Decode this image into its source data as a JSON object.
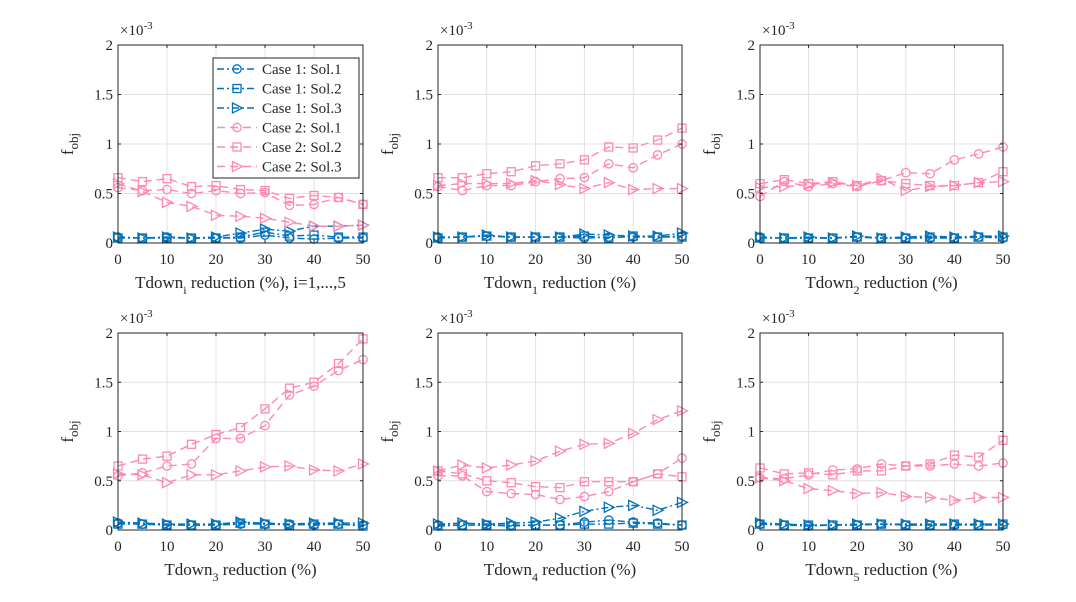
{
  "chart_data": [
    {
      "type": "line",
      "title": "",
      "xlabel": "Tdown",
      "xlabel_sub": "i",
      "xlabel_suffix": " reduction (%), i=1,...,5",
      "ylabel": "f",
      "ylabel_sub": "obj",
      "y_exponent": "×10",
      "y_exponent_power": "-3",
      "xlim": [
        0,
        50
      ],
      "ylim": [
        0,
        2
      ],
      "xticks": [
        "0",
        "10",
        "20",
        "30",
        "40",
        "50"
      ],
      "yticks": [
        "0",
        "0.5",
        "1",
        "1.5",
        "2"
      ],
      "grid": true,
      "legend": "top-right",
      "x": [
        0,
        5,
        10,
        15,
        20,
        25,
        30,
        35,
        40,
        45,
        50
      ],
      "series": [
        {
          "name": "Case 1: Sol.1",
          "values": [
            0.06,
            0.05,
            0.06,
            0.05,
            0.05,
            0.05,
            0.08,
            0.05,
            0.04,
            0.05,
            0.05
          ]
        },
        {
          "name": "Case 1: Sol.2",
          "values": [
            0.05,
            0.05,
            0.05,
            0.05,
            0.05,
            0.06,
            0.11,
            0.07,
            0.08,
            0.06,
            0.06
          ]
        },
        {
          "name": "Case 1: Sol.3",
          "values": [
            0.06,
            0.05,
            0.06,
            0.05,
            0.06,
            0.1,
            0.14,
            0.12,
            0.17,
            0.17,
            0.18
          ]
        },
        {
          "name": "Case 2: Sol.1",
          "values": [
            0.56,
            0.53,
            0.54,
            0.5,
            0.53,
            0.5,
            0.51,
            0.38,
            0.39,
            0.46,
            0.39
          ]
        },
        {
          "name": "Case 2: Sol.2",
          "values": [
            0.66,
            0.62,
            0.65,
            0.57,
            0.58,
            0.54,
            0.53,
            0.45,
            0.48,
            0.46,
            0.39
          ]
        },
        {
          "name": "Case 2: Sol.3",
          "values": [
            0.6,
            0.52,
            0.41,
            0.37,
            0.28,
            0.27,
            0.25,
            0.21,
            0.17,
            0.17,
            0.18
          ]
        }
      ]
    },
    {
      "type": "line",
      "title": "",
      "xlabel": "Tdown",
      "xlabel_sub": "1",
      "xlabel_suffix": " reduction (%)",
      "ylabel": "f",
      "ylabel_sub": "obj",
      "y_exponent": "×10",
      "y_exponent_power": "-3",
      "xlim": [
        0,
        50
      ],
      "ylim": [
        0,
        2
      ],
      "xticks": [
        "0",
        "10",
        "20",
        "30",
        "40",
        "50"
      ],
      "yticks": [
        "0",
        "0.5",
        "1",
        "1.5",
        "2"
      ],
      "grid": true,
      "x": [
        0,
        5,
        10,
        15,
        20,
        25,
        30,
        35,
        40,
        45,
        50
      ],
      "series": [
        {
          "name": "Case 1: Sol.1",
          "values": [
            0.06,
            0.06,
            0.07,
            0.06,
            0.06,
            0.06,
            0.05,
            0.06,
            0.06,
            0.06,
            0.07
          ]
        },
        {
          "name": "Case 1: Sol.2",
          "values": [
            0.05,
            0.06,
            0.07,
            0.06,
            0.06,
            0.06,
            0.07,
            0.05,
            0.07,
            0.06,
            0.06
          ]
        },
        {
          "name": "Case 1: Sol.3",
          "values": [
            0.06,
            0.06,
            0.08,
            0.06,
            0.06,
            0.06,
            0.09,
            0.08,
            0.07,
            0.07,
            0.1
          ]
        },
        {
          "name": "Case 2: Sol.1",
          "values": [
            0.57,
            0.53,
            0.58,
            0.58,
            0.62,
            0.65,
            0.66,
            0.8,
            0.76,
            0.89,
            1.0
          ]
        },
        {
          "name": "Case 2: Sol.2",
          "values": [
            0.66,
            0.66,
            0.7,
            0.72,
            0.78,
            0.8,
            0.84,
            0.97,
            0.96,
            1.04,
            1.16
          ]
        },
        {
          "name": "Case 2: Sol.3",
          "values": [
            0.58,
            0.6,
            0.6,
            0.6,
            0.63,
            0.59,
            0.55,
            0.61,
            0.54,
            0.55,
            0.55
          ]
        }
      ]
    },
    {
      "type": "line",
      "title": "",
      "xlabel": "Tdown",
      "xlabel_sub": "2",
      "xlabel_suffix": " reduction (%)",
      "ylabel": "f",
      "ylabel_sub": "obj",
      "y_exponent": "×10",
      "y_exponent_power": "-3",
      "xlim": [
        0,
        50
      ],
      "ylim": [
        0,
        2
      ],
      "xticks": [
        "0",
        "10",
        "20",
        "30",
        "40",
        "50"
      ],
      "yticks": [
        "0",
        "0.5",
        "1",
        "1.5",
        "2"
      ],
      "grid": true,
      "x": [
        0,
        5,
        10,
        15,
        20,
        25,
        30,
        35,
        40,
        45,
        50
      ],
      "series": [
        {
          "name": "Case 1: Sol.1",
          "values": [
            0.06,
            0.05,
            0.05,
            0.05,
            0.06,
            0.05,
            0.05,
            0.05,
            0.05,
            0.06,
            0.05
          ]
        },
        {
          "name": "Case 1: Sol.2",
          "values": [
            0.05,
            0.05,
            0.05,
            0.05,
            0.06,
            0.05,
            0.05,
            0.06,
            0.05,
            0.06,
            0.06
          ]
        },
        {
          "name": "Case 1: Sol.3",
          "values": [
            0.06,
            0.05,
            0.06,
            0.05,
            0.07,
            0.05,
            0.06,
            0.07,
            0.06,
            0.07,
            0.07
          ]
        },
        {
          "name": "Case 2: Sol.1",
          "values": [
            0.47,
            0.62,
            0.57,
            0.6,
            0.57,
            0.63,
            0.71,
            0.7,
            0.84,
            0.9,
            0.97
          ]
        },
        {
          "name": "Case 2: Sol.2",
          "values": [
            0.6,
            0.64,
            0.6,
            0.62,
            0.58,
            0.63,
            0.6,
            0.58,
            0.58,
            0.61,
            0.72
          ]
        },
        {
          "name": "Case 2: Sol.3",
          "values": [
            0.56,
            0.57,
            0.59,
            0.61,
            0.58,
            0.65,
            0.53,
            0.57,
            0.58,
            0.61,
            0.62
          ]
        }
      ]
    },
    {
      "type": "line",
      "title": "",
      "xlabel": "Tdown",
      "xlabel_sub": "3",
      "xlabel_suffix": " reduction (%)",
      "ylabel": "f",
      "ylabel_sub": "obj",
      "y_exponent": "×10",
      "y_exponent_power": "-3",
      "xlim": [
        0,
        50
      ],
      "ylim": [
        0,
        2
      ],
      "xticks": [
        "0",
        "10",
        "20",
        "30",
        "40",
        "50"
      ],
      "yticks": [
        "0",
        "0.5",
        "1",
        "1.5",
        "2"
      ],
      "grid": true,
      "x": [
        0,
        5,
        10,
        15,
        20,
        25,
        30,
        35,
        40,
        45,
        50
      ],
      "series": [
        {
          "name": "Case 1: Sol.1",
          "values": [
            0.07,
            0.06,
            0.05,
            0.05,
            0.05,
            0.06,
            0.06,
            0.06,
            0.05,
            0.06,
            0.05
          ]
        },
        {
          "name": "Case 1: Sol.2",
          "values": [
            0.06,
            0.06,
            0.05,
            0.05,
            0.05,
            0.07,
            0.06,
            0.05,
            0.06,
            0.06,
            0.04
          ]
        },
        {
          "name": "Case 1: Sol.3",
          "values": [
            0.08,
            0.07,
            0.06,
            0.06,
            0.06,
            0.08,
            0.07,
            0.06,
            0.07,
            0.07,
            0.07
          ]
        },
        {
          "name": "Case 2: Sol.1",
          "values": [
            0.55,
            0.58,
            0.65,
            0.67,
            0.93,
            0.93,
            1.06,
            1.37,
            1.46,
            1.62,
            1.73
          ]
        },
        {
          "name": "Case 2: Sol.2",
          "values": [
            0.65,
            0.72,
            0.75,
            0.87,
            0.97,
            1.04,
            1.23,
            1.44,
            1.5,
            1.69,
            1.94
          ]
        },
        {
          "name": "Case 2: Sol.3",
          "values": [
            0.57,
            0.56,
            0.48,
            0.56,
            0.56,
            0.6,
            0.64,
            0.65,
            0.61,
            0.6,
            0.67
          ]
        }
      ]
    },
    {
      "type": "line",
      "title": "",
      "xlabel": "Tdown",
      "xlabel_sub": "4",
      "xlabel_suffix": " reduction (%)",
      "ylabel": "f",
      "ylabel_sub": "obj",
      "y_exponent": "×10",
      "y_exponent_power": "-3",
      "xlim": [
        0,
        50
      ],
      "ylim": [
        0,
        2
      ],
      "xticks": [
        "0",
        "10",
        "20",
        "30",
        "40",
        "50"
      ],
      "yticks": [
        "0",
        "0.5",
        "1",
        "1.5",
        "2"
      ],
      "grid": true,
      "x": [
        0,
        5,
        10,
        15,
        20,
        25,
        30,
        35,
        40,
        45,
        50
      ],
      "series": [
        {
          "name": "Case 1: Sol.1",
          "values": [
            0.05,
            0.05,
            0.05,
            0.05,
            0.05,
            0.05,
            0.08,
            0.1,
            0.08,
            0.07,
            0.05
          ]
        },
        {
          "name": "Case 1: Sol.2",
          "values": [
            0.04,
            0.05,
            0.05,
            0.04,
            0.05,
            0.05,
            0.06,
            0.06,
            0.07,
            0.06,
            0.05
          ]
        },
        {
          "name": "Case 1: Sol.3",
          "values": [
            0.06,
            0.07,
            0.06,
            0.07,
            0.08,
            0.12,
            0.19,
            0.23,
            0.25,
            0.2,
            0.28
          ]
        },
        {
          "name": "Case 2: Sol.1",
          "values": [
            0.55,
            0.55,
            0.39,
            0.37,
            0.36,
            0.31,
            0.34,
            0.39,
            0.49,
            0.57,
            0.73
          ]
        },
        {
          "name": "Case 2: Sol.2",
          "values": [
            0.6,
            0.57,
            0.5,
            0.48,
            0.44,
            0.43,
            0.49,
            0.49,
            0.49,
            0.57,
            0.54
          ]
        },
        {
          "name": "Case 2: Sol.3",
          "values": [
            0.6,
            0.66,
            0.63,
            0.66,
            0.7,
            0.8,
            0.87,
            0.88,
            0.98,
            1.12,
            1.21
          ]
        }
      ]
    },
    {
      "type": "line",
      "title": "",
      "xlabel": "Tdown",
      "xlabel_sub": "5",
      "xlabel_suffix": " reduction (%)",
      "ylabel": "f",
      "ylabel_sub": "obj",
      "y_exponent": "×10",
      "y_exponent_power": "-3",
      "xlim": [
        0,
        50
      ],
      "ylim": [
        0,
        2
      ],
      "xticks": [
        "0",
        "10",
        "20",
        "30",
        "40",
        "50"
      ],
      "yticks": [
        "0",
        "0.5",
        "1",
        "1.5",
        "2"
      ],
      "grid": true,
      "x": [
        0,
        5,
        10,
        15,
        20,
        25,
        30,
        35,
        40,
        45,
        50
      ],
      "series": [
        {
          "name": "Case 1: Sol.1",
          "values": [
            0.06,
            0.05,
            0.04,
            0.05,
            0.05,
            0.06,
            0.05,
            0.05,
            0.05,
            0.05,
            0.05
          ]
        },
        {
          "name": "Case 1: Sol.2",
          "values": [
            0.06,
            0.05,
            0.05,
            0.05,
            0.05,
            0.06,
            0.05,
            0.05,
            0.06,
            0.05,
            0.06
          ]
        },
        {
          "name": "Case 1: Sol.3",
          "values": [
            0.07,
            0.06,
            0.05,
            0.05,
            0.06,
            0.06,
            0.06,
            0.06,
            0.06,
            0.06,
            0.06
          ]
        },
        {
          "name": "Case 2: Sol.1",
          "values": [
            0.53,
            0.52,
            0.56,
            0.61,
            0.62,
            0.67,
            0.65,
            0.65,
            0.67,
            0.65,
            0.68
          ]
        },
        {
          "name": "Case 2: Sol.2",
          "values": [
            0.63,
            0.57,
            0.58,
            0.56,
            0.6,
            0.6,
            0.65,
            0.67,
            0.76,
            0.74,
            0.91
          ]
        },
        {
          "name": "Case 2: Sol.3",
          "values": [
            0.53,
            0.5,
            0.42,
            0.4,
            0.37,
            0.38,
            0.34,
            0.33,
            0.3,
            0.33,
            0.33
          ]
        }
      ]
    }
  ],
  "legend": {
    "entries": [
      "Case 1: Sol.1",
      "Case 1: Sol.2",
      "Case 1: Sol.3",
      "Case 2: Sol.1",
      "Case 2: Sol.2",
      "Case 2: Sol.3"
    ]
  },
  "colors": {
    "case1": "#0072BD",
    "case2": "#FF88B4",
    "axis": "#262626",
    "grid": "#E0E0E0"
  }
}
